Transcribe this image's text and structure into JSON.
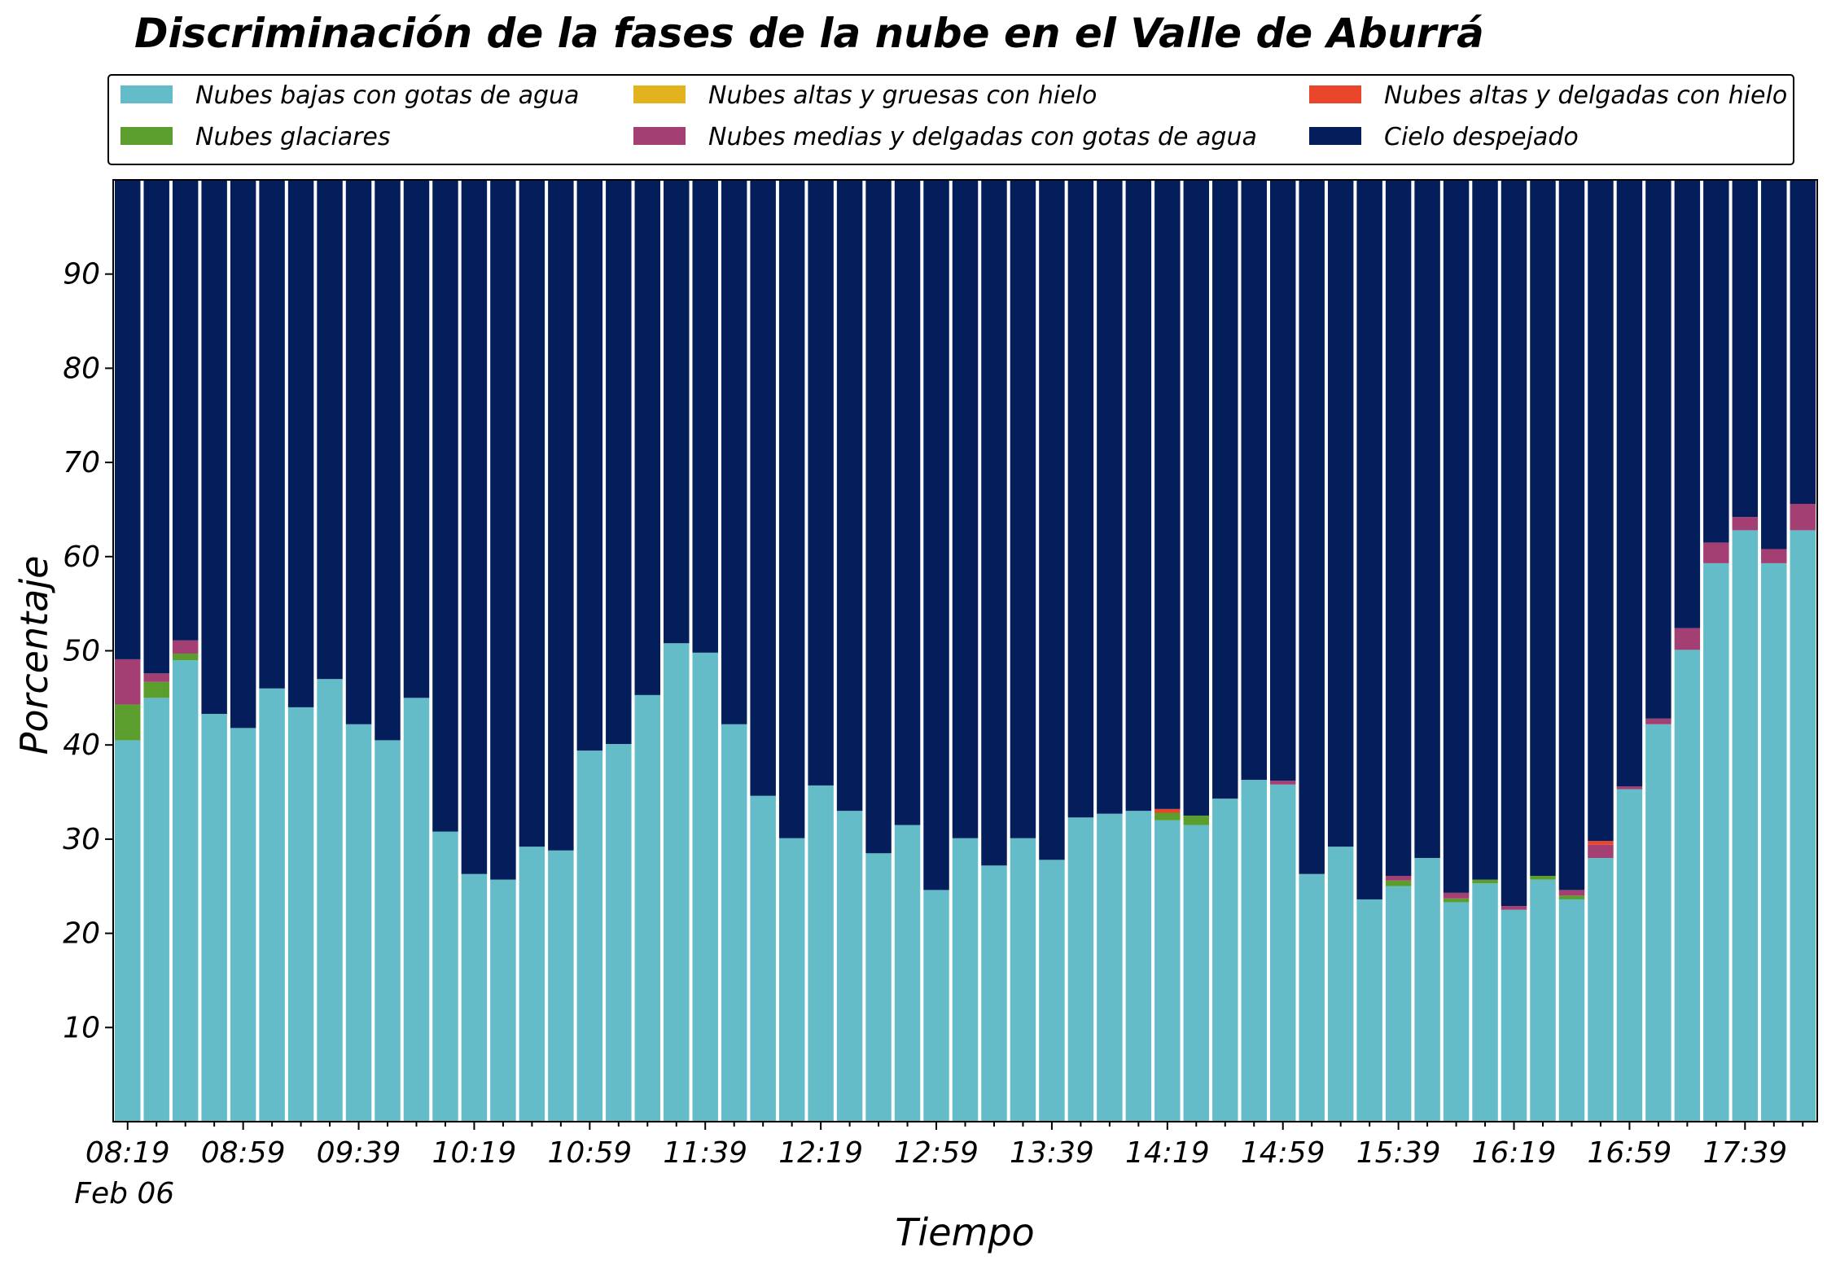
{
  "chart_data": {
    "type": "bar",
    "stacked": true,
    "title": "Discriminación de la fases de la nube en el Valle de Aburrá",
    "xlabel": "Tiempo",
    "ylabel": "Porcentaje",
    "ylim": [
      0,
      100
    ],
    "yticks": [
      10,
      20,
      30,
      40,
      50,
      60,
      70,
      80,
      90
    ],
    "grid": false,
    "legend_position": "top",
    "x_tick_labels": [
      "08:19",
      "08:59",
      "09:39",
      "10:19",
      "10:59",
      "11:39",
      "12:19",
      "12:59",
      "13:39",
      "14:19",
      "14:59",
      "15:39",
      "16:19",
      "16:59",
      "17:39"
    ],
    "x_tick_label_every": 4,
    "x_date_label": "Feb 06",
    "categories": [
      "08:19",
      "08:29",
      "08:39",
      "08:49",
      "08:59",
      "09:09",
      "09:19",
      "09:29",
      "09:39",
      "09:49",
      "09:59",
      "10:09",
      "10:19",
      "10:29",
      "10:39",
      "10:49",
      "10:59",
      "11:09",
      "11:19",
      "11:29",
      "11:39",
      "11:49",
      "11:59",
      "12:09",
      "12:19",
      "12:29",
      "12:39",
      "12:49",
      "12:59",
      "13:09",
      "13:19",
      "13:29",
      "13:39",
      "13:49",
      "13:59",
      "14:09",
      "14:19",
      "14:29",
      "14:39",
      "14:49",
      "14:59",
      "15:09",
      "15:19",
      "15:29",
      "15:39",
      "15:49",
      "15:59",
      "16:09",
      "16:19",
      "16:29",
      "16:39",
      "16:49",
      "16:59",
      "17:09",
      "17:19",
      "17:29",
      "17:39",
      "17:49",
      "17:59"
    ],
    "series": [
      {
        "name": "Nubes bajas con gotas de agua",
        "color": "#64bcc8",
        "values": [
          40.5,
          45,
          49,
          43.3,
          41.8,
          46,
          44,
          47,
          42.2,
          40.5,
          45,
          30.8,
          26.3,
          25.7,
          29.2,
          28.8,
          39.4,
          40.1,
          45.3,
          50.8,
          49.8,
          42.2,
          34.6,
          30.1,
          35.7,
          33,
          28.5,
          31.5,
          24.6,
          30.1,
          27.2,
          30.1,
          27.8,
          32.3,
          32.7,
          33,
          32,
          31.5,
          34.3,
          36.3,
          35.8,
          26.3,
          29.2,
          23.6,
          25,
          28,
          23.3,
          25.3,
          22.5,
          25.7,
          23.6,
          28,
          35.3,
          42.2,
          50.1,
          59.3,
          62.8,
          59.3,
          62.8
        ]
      },
      {
        "name": "Nubes glaciares",
        "color": "#5b9e2d",
        "values": [
          3.8,
          1.7,
          0.7,
          0,
          0,
          0,
          0,
          0,
          0,
          0,
          0,
          0,
          0,
          0,
          0,
          0,
          0,
          0,
          0,
          0,
          0,
          0,
          0,
          0,
          0,
          0,
          0,
          0,
          0,
          0,
          0,
          0,
          0,
          0,
          0,
          0,
          0.8,
          1,
          0,
          0,
          0,
          0,
          0,
          0,
          0.6,
          0,
          0.4,
          0.4,
          0,
          0.4,
          0.4,
          0,
          0,
          0,
          0,
          0,
          0,
          0,
          0
        ]
      },
      {
        "name": "Nubes altas y gruesas con hielo",
        "color": "#e2b31c",
        "values": [
          0,
          0,
          0,
          0,
          0,
          0,
          0,
          0,
          0,
          0,
          0,
          0,
          0,
          0,
          0,
          0,
          0,
          0,
          0,
          0,
          0,
          0,
          0,
          0,
          0,
          0,
          0,
          0,
          0,
          0,
          0,
          0,
          0,
          0,
          0,
          0,
          0,
          0,
          0,
          0,
          0,
          0,
          0,
          0,
          0,
          0,
          0,
          0,
          0,
          0,
          0,
          0,
          0,
          0,
          0,
          0,
          0,
          0,
          0
        ]
      },
      {
        "name": "Nubes medias y delgadas con gotas de agua",
        "color": "#a33f72",
        "values": [
          4.8,
          0.9,
          1.4,
          0,
          0,
          0,
          0,
          0,
          0,
          0,
          0,
          0,
          0,
          0,
          0,
          0,
          0,
          0,
          0,
          0,
          0,
          0,
          0,
          0,
          0,
          0,
          0,
          0,
          0,
          0,
          0,
          0,
          0,
          0,
          0,
          0,
          0,
          0,
          0,
          0,
          0.4,
          0,
          0,
          0,
          0.5,
          0,
          0.6,
          0,
          0.4,
          0,
          0.6,
          1.4,
          0.3,
          0.6,
          2.3,
          2.2,
          1.4,
          1.5,
          2.8
        ]
      },
      {
        "name": "Nubes altas y delgadas con hielo",
        "color": "#e8452a",
        "values": [
          0,
          0,
          0,
          0,
          0,
          0,
          0,
          0,
          0,
          0,
          0,
          0,
          0,
          0,
          0,
          0,
          0,
          0,
          0,
          0,
          0,
          0,
          0,
          0,
          0,
          0,
          0,
          0,
          0,
          0,
          0,
          0,
          0,
          0,
          0,
          0,
          0.4,
          0,
          0,
          0,
          0,
          0,
          0,
          0,
          0,
          0,
          0,
          0,
          0,
          0,
          0,
          0.4,
          0,
          0,
          0,
          0,
          0,
          0,
          0
        ]
      },
      {
        "name": "Cielo despejado",
        "color": "#041e5c",
        "values": [
          50.9,
          52.4,
          48.9,
          56.7,
          58.2,
          54,
          56,
          53,
          57.8,
          59.5,
          55,
          69.2,
          73.7,
          74.3,
          70.8,
          71.2,
          60.6,
          59.9,
          54.7,
          49.2,
          50.2,
          57.8,
          65.4,
          69.9,
          64.3,
          67,
          71.5,
          68.5,
          75.4,
          69.9,
          72.8,
          69.9,
          72.2,
          67.7,
          67.3,
          67,
          66.8,
          67.5,
          65.7,
          63.7,
          63.8,
          73.7,
          70.8,
          76.4,
          73.9,
          72,
          75.7,
          74.3,
          77.1,
          73.9,
          75.4,
          70.2,
          64.4,
          57.2,
          47.6,
          38.5,
          35.8,
          39.2,
          34.4
        ]
      }
    ]
  }
}
